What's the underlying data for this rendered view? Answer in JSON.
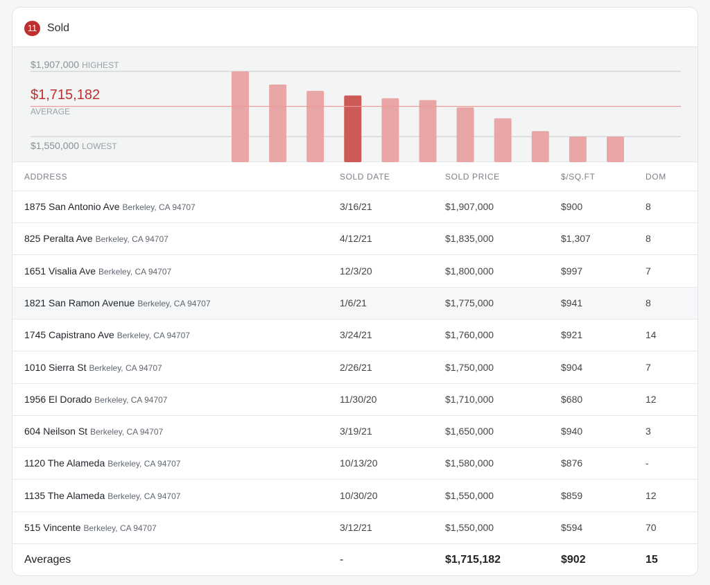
{
  "header": {
    "count": "11",
    "title": "Sold"
  },
  "chart_data": {
    "type": "bar",
    "highest_value": "$1,907,000",
    "highest_label": "HIGHEST",
    "average_value": "$1,715,182",
    "average_label": "AVERAGE",
    "lowest_value": "$1,550,000",
    "lowest_label": "LOWEST",
    "values": [
      1907000,
      1835000,
      1800000,
      1775000,
      1760000,
      1750000,
      1710000,
      1650000,
      1580000,
      1550000,
      1550000
    ],
    "highlight_index": 3,
    "ylim": [
      1550000,
      1907000
    ],
    "bar_color": "#e8a6a6",
    "highlight_color": "#cc5a56",
    "average_line_color": "#ee9a9a"
  },
  "table": {
    "columns": [
      "ADDRESS",
      "SOLD DATE",
      "SOLD PRICE",
      "$/SQ.FT",
      "DOM"
    ],
    "rows": [
      {
        "street": "1875 San Antonio Ave",
        "city": "Berkeley, CA 94707",
        "date": "3/16/21",
        "price": "$1,907,000",
        "ppsf": "$900",
        "dom": "8"
      },
      {
        "street": "825 Peralta Ave",
        "city": "Berkeley, CA 94707",
        "date": "4/12/21",
        "price": "$1,835,000",
        "ppsf": "$1,307",
        "dom": "8"
      },
      {
        "street": "1651 Visalia Ave",
        "city": "Berkeley, CA 94707",
        "date": "12/3/20",
        "price": "$1,800,000",
        "ppsf": "$997",
        "dom": "7"
      },
      {
        "street": "1821 San Ramon Avenue",
        "city": "Berkeley, CA 94707",
        "date": "1/6/21",
        "price": "$1,775,000",
        "ppsf": "$941",
        "dom": "8"
      },
      {
        "street": "1745 Capistrano Ave",
        "city": "Berkeley, CA 94707",
        "date": "3/24/21",
        "price": "$1,760,000",
        "ppsf": "$921",
        "dom": "14"
      },
      {
        "street": "1010 Sierra St",
        "city": "Berkeley, CA 94707",
        "date": "2/26/21",
        "price": "$1,750,000",
        "ppsf": "$904",
        "dom": "7"
      },
      {
        "street": "1956 El Dorado",
        "city": "Berkeley, CA 94707",
        "date": "11/30/20",
        "price": "$1,710,000",
        "ppsf": "$680",
        "dom": "12"
      },
      {
        "street": "604 Neilson St",
        "city": "Berkeley, CA 94707",
        "date": "3/19/21",
        "price": "$1,650,000",
        "ppsf": "$940",
        "dom": "3"
      },
      {
        "street": "1120 The Alameda",
        "city": "Berkeley, CA 94707",
        "date": "10/13/20",
        "price": "$1,580,000",
        "ppsf": "$876",
        "dom": "-"
      },
      {
        "street": "1135 The Alameda",
        "city": "Berkeley, CA 94707",
        "date": "10/30/20",
        "price": "$1,550,000",
        "ppsf": "$859",
        "dom": "12"
      },
      {
        "street": "515 Vincente",
        "city": "Berkeley, CA 94707",
        "date": "3/12/21",
        "price": "$1,550,000",
        "ppsf": "$594",
        "dom": "70"
      }
    ],
    "highlighted_row": 3,
    "averages": {
      "label": "Averages",
      "date": "-",
      "price": "$1,715,182",
      "ppsf": "$902",
      "dom": "15"
    }
  }
}
